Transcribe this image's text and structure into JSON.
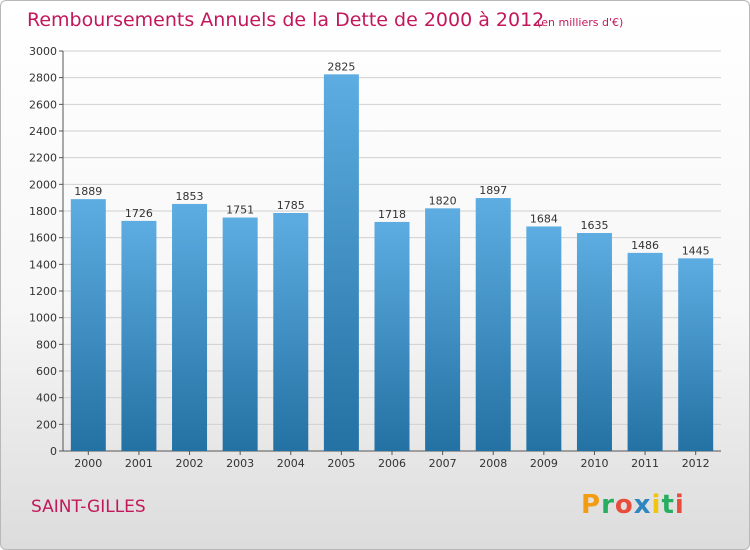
{
  "header": {
    "title": "Remboursements Annuels de la Dette de 2000 à 2012",
    "subtitle": "(en milliers d'€)"
  },
  "footer": {
    "commune": "SAINT-GILLES",
    "logo_text": "Proxiti",
    "logo_colors": [
      "#f39c12",
      "#27ae60",
      "#e74c3c",
      "#2e86c1",
      "#f1c40f",
      "#27ae60",
      "#e74c3c"
    ]
  },
  "colors": {
    "accent": "#c2185b",
    "bar_top": "#5dade2",
    "bar_bottom": "#2471a3",
    "grid": "#d0d0d0"
  },
  "chart_data": {
    "type": "bar",
    "title": "Remboursements Annuels de la Dette de 2000 à 2012",
    "subtitle": "(en milliers d'€)",
    "categories": [
      "2000",
      "2001",
      "2002",
      "2003",
      "2004",
      "2005",
      "2006",
      "2007",
      "2008",
      "2009",
      "2010",
      "2011",
      "2012"
    ],
    "values": [
      1889,
      1726,
      1853,
      1751,
      1785,
      2825,
      1718,
      1820,
      1897,
      1684,
      1635,
      1486,
      1445
    ],
    "ylim": [
      0,
      3000
    ],
    "yticks": [
      0,
      200,
      400,
      600,
      800,
      1000,
      1200,
      1400,
      1600,
      1800,
      2000,
      2200,
      2400,
      2600,
      2800,
      3000
    ],
    "grid": true,
    "xlabel": "",
    "ylabel": ""
  }
}
